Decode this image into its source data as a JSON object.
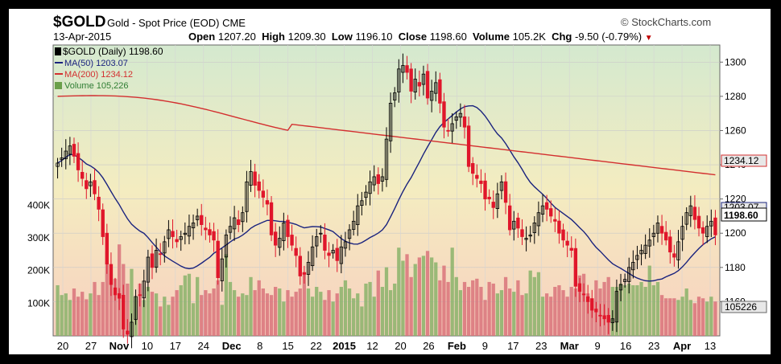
{
  "header": {
    "symbol": "$GOLD",
    "description": "Gold - Spot Price (EOD)",
    "exchange": "CME",
    "brand": "© StockCharts.com",
    "date": "13-Apr-2015",
    "open_label": "Open",
    "open": "1207.20",
    "high_label": "High",
    "high": "1209.30",
    "low_label": "Low",
    "low": "1196.10",
    "close_label": "Close",
    "close": "1198.60",
    "volume_label": "Volume",
    "volume": "105.2K",
    "chg_label": "Chg",
    "chg": "-9.50 (-0.79%)",
    "chg_arrow": "▼"
  },
  "legend": {
    "price": "$GOLD (Daily) 1198.60",
    "ma50": "MA(50) 1203.07",
    "ma200": "MA(200) 1234.12",
    "volume": "Volume 105,226"
  },
  "right_tags": {
    "ma200": "1234.12",
    "ma50": "1203.07",
    "close": "1198.60",
    "volume": "105226"
  },
  "colors": {
    "up": "#000000",
    "down": "#e0162b",
    "ma50": "#1a237e",
    "ma200": "#d32f2f",
    "vol_up": "#8ab36a",
    "vol_down": "#d9737a",
    "bg_top": "#d4e9cf",
    "bg_mid": "#f4ecc0",
    "bg_bottom": "#f8d0c0",
    "tag_bg": "#e8e8e8"
  },
  "chart_data": {
    "type": "candlestick",
    "x_tick_labels": [
      "20",
      "27",
      "Nov",
      "10",
      "17",
      "24",
      "Dec",
      "8",
      "15",
      "22",
      "2015",
      "12",
      "20",
      "26",
      "Feb",
      "9",
      "17",
      "23",
      "Mar",
      "9",
      "16",
      "23",
      "Apr",
      "13"
    ],
    "y_tick_labels": [
      "1160",
      "1180",
      "1200",
      "1220",
      "1240",
      "1260",
      "1280",
      "1300"
    ],
    "ylim": [
      1140,
      1310
    ],
    "volume_tick_labels": [
      "100K",
      "200K",
      "300K",
      "400K"
    ],
    "volume_ylim": [
      0,
      500000
    ],
    "close": [
      1241,
      1244,
      1248,
      1251,
      1245,
      1237,
      1232,
      1226,
      1230,
      1223,
      1214,
      1198,
      1182,
      1170,
      1164,
      1162,
      1144,
      1141,
      1148,
      1163,
      1164,
      1172,
      1186,
      1180,
      1190,
      1188,
      1195,
      1202,
      1198,
      1195,
      1198,
      1200,
      1204,
      1206,
      1210,
      1205,
      1202,
      1199,
      1196,
      1174,
      1185,
      1199,
      1204,
      1209,
      1205,
      1212,
      1230,
      1236,
      1228,
      1225,
      1221,
      1217,
      1199,
      1193,
      1197,
      1206,
      1198,
      1193,
      1187,
      1175,
      1176,
      1183,
      1192,
      1198,
      1200,
      1190,
      1187,
      1190,
      1184,
      1192,
      1195,
      1202,
      1207,
      1216,
      1219,
      1224,
      1230,
      1233,
      1229,
      1233,
      1255,
      1276,
      1282,
      1296,
      1298,
      1294,
      1283,
      1290,
      1286,
      1293,
      1279,
      1283,
      1288,
      1276,
      1262,
      1260,
      1264,
      1268,
      1270,
      1262,
      1239,
      1235,
      1232,
      1229,
      1220,
      1220,
      1215,
      1223,
      1230,
      1218,
      1202,
      1207,
      1203,
      1198,
      1197,
      1199,
      1206,
      1212,
      1216,
      1214,
      1210,
      1207,
      1200,
      1196,
      1193,
      1190,
      1169,
      1166,
      1164,
      1160,
      1155,
      1154,
      1152,
      1150,
      1148,
      1150,
      1166,
      1170,
      1173,
      1180,
      1183,
      1187,
      1190,
      1193,
      1196,
      1200,
      1206,
      1200,
      1196,
      1189,
      1186,
      1195,
      1204,
      1212,
      1216,
      1208,
      1203,
      1200,
      1204,
      1207,
      1199
    ],
    "volume": [
      155000,
      125000,
      130000,
      110000,
      145000,
      120000,
      135000,
      112000,
      130000,
      165000,
      125000,
      165000,
      260000,
      190000,
      175000,
      280000,
      220000,
      160000,
      205000,
      120000,
      160000,
      110000,
      150000,
      135000,
      130000,
      90000,
      120000,
      95000,
      120000,
      140000,
      155000,
      185000,
      190000,
      100000,
      180000,
      125000,
      140000,
      130000,
      145000,
      170000,
      95000,
      250000,
      165000,
      140000,
      120000,
      130000,
      125000,
      180000,
      140000,
      170000,
      145000,
      130000,
      125000,
      150000,
      145000,
      105000,
      140000,
      120000,
      135000,
      145000,
      195000,
      145000,
      120000,
      150000,
      135000,
      110000,
      140000,
      105000,
      130000,
      150000,
      170000,
      145000,
      115000,
      130000,
      90000,
      160000,
      165000,
      120000,
      200000,
      150000,
      210000,
      140000,
      160000,
      270000,
      230000,
      250000,
      180000,
      220000,
      240000,
      245000,
      260000,
      240000,
      225000,
      170000,
      215000,
      165000,
      270000,
      180000,
      140000,
      165000,
      150000,
      170000,
      175000,
      150000,
      110000,
      165000,
      160000,
      130000,
      140000,
      180000,
      145000,
      135000,
      170000,
      125000,
      130000,
      200000,
      180000,
      195000,
      120000,
      130000,
      120000,
      150000,
      155000,
      140000,
      120000,
      150000,
      145000,
      185000,
      190000,
      130000,
      100000,
      170000,
      145000,
      165000,
      180000,
      150000,
      150000,
      160000,
      155000,
      160000,
      155000,
      155000,
      165000,
      150000,
      215000,
      155000,
      165000,
      125000,
      115000,
      115000,
      115000,
      110000,
      120000,
      145000,
      110000,
      100000,
      120000,
      115000,
      105000,
      120000,
      105226
    ]
  }
}
